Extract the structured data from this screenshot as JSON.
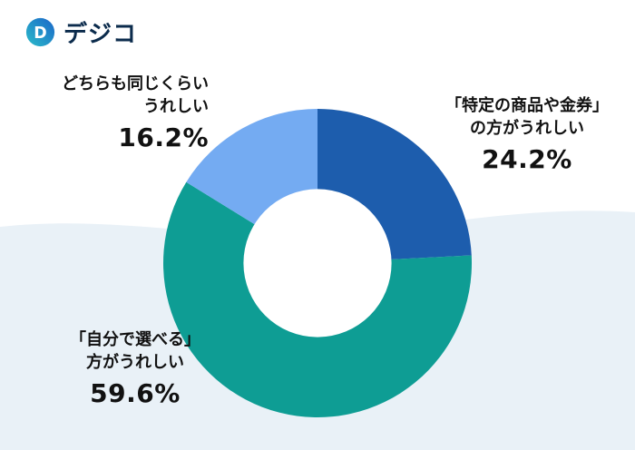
{
  "logo": {
    "text": "デジコ",
    "icon": "digico-d-icon"
  },
  "colors": {
    "wave": "#e9f1f7",
    "logo_teal": "#2bbcc9",
    "logo_blue": "#1b66c9",
    "logo_text": "#0b2b4c",
    "text": "#111111"
  },
  "chart_data": {
    "type": "pie",
    "subtype": "donut",
    "title": "",
    "unit": "%",
    "legend": "none",
    "labels_position": "outside",
    "start_angle_deg": 0,
    "direction": "clockwise",
    "inner_radius_ratio": 0.48,
    "segments": [
      {
        "label": "「特定の商品や金券」の方がうれしい",
        "value": 24.2,
        "color": "#1d5dad"
      },
      {
        "label": "「自分で選べる」方がうれしい",
        "value": 59.6,
        "color": "#0e9d94"
      },
      {
        "label": "どちらも同じくらいうれしい",
        "value": 16.2,
        "color": "#74abf2"
      }
    ]
  },
  "callouts": {
    "specific": {
      "lines": [
        "「特定の商品や金券」",
        "の方がうれしい"
      ],
      "value": "24.2%"
    },
    "choose": {
      "lines": [
        "「自分で選べる」",
        "方がうれしい"
      ],
      "value": "59.6%"
    },
    "both": {
      "lines": [
        "どちらも同じくらい",
        "うれしい"
      ],
      "value": "16.2%"
    }
  }
}
